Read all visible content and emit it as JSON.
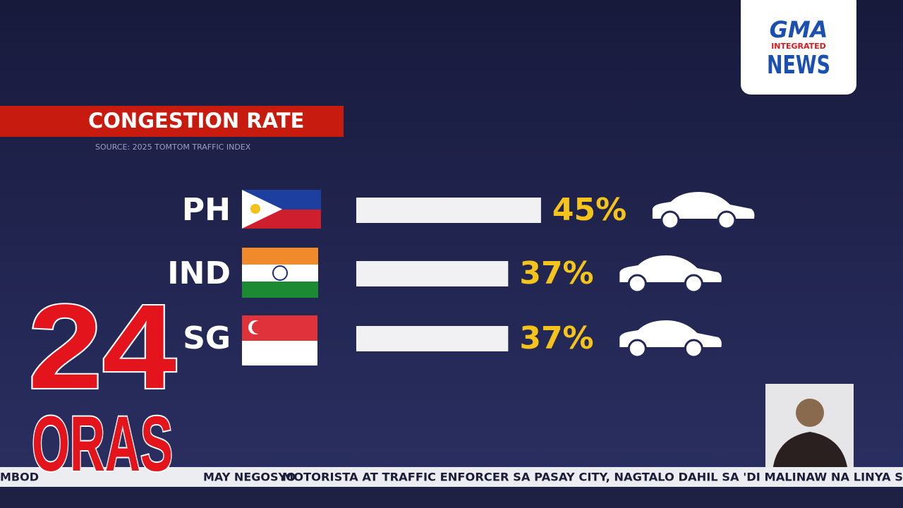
{
  "chart_data": {
    "type": "hbar",
    "title": "CONGESTION RATE",
    "subtitle": "SOURCE: 2025 TOMTOM TRAFFIC INDEX",
    "categories": [
      "PH",
      "IND",
      "SG"
    ],
    "values": [
      45,
      37,
      37
    ],
    "value_labels": [
      "45%",
      "37%",
      "37%"
    ],
    "color": "#f1f1f3",
    "label_color": "#f5c41c"
  },
  "logo": {
    "brand": "GMA",
    "line2": "INTEGRATED",
    "line3": "NEWS"
  },
  "show": {
    "number": "24",
    "name": "ORAS"
  },
  "ticker": {
    "items": [
      "MBOD",
      "MAY NEGOSYO",
      "MOTORISTA AT TRAFFIC ENFORCER SA PASAY CITY, NAGTALO DAHIL SA 'DI MALINAW NA LINYA S"
    ]
  }
}
